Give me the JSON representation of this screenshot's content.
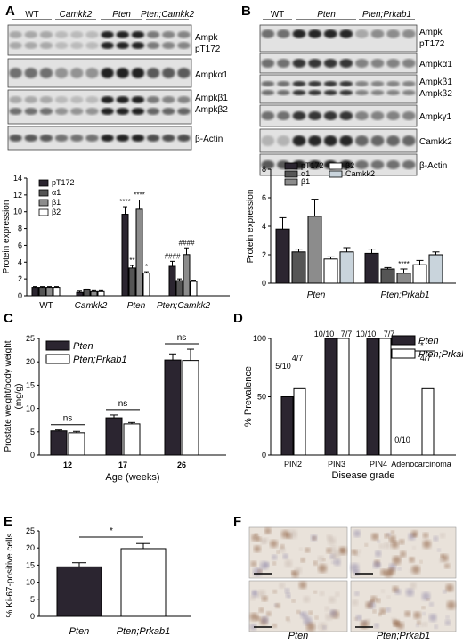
{
  "panel_letters": [
    "A",
    "B",
    "C",
    "D",
    "E",
    "F"
  ],
  "blots": {
    "A": {
      "groups": [
        "WT",
        "Camkk2",
        "Pten",
        "Pten;Camkk2"
      ],
      "rows": [
        "Ampk pT172",
        "Ampkα1",
        "Ampkβ1 Ampkβ2",
        "β-Actin"
      ]
    },
    "B": {
      "groups": [
        "WT",
        "Pten",
        "Pten;Prkab1"
      ],
      "rows": [
        "Ampk pT172",
        "Ampkα1",
        "Ampkβ1 Ampkβ2",
        "Ampkγ1",
        "Camkk2",
        "β-Actin"
      ]
    }
  },
  "micrograph_labels": [
    "Pten",
    "Pten;Prkab1"
  ],
  "colors": {
    "black": "#1a1a1a",
    "dark_gray": "#555555",
    "mid_gray": "#8c8c8c",
    "white": "#ffffff",
    "light_blue": "#c9d4dc",
    "dark_fill": "#2b2530"
  },
  "chart_data": [
    {
      "panel": "A",
      "type": "bar",
      "categories": [
        "WT",
        "Camkk2",
        "Pten",
        "Pten;Camkk2"
      ],
      "ylabel": "Protein expression",
      "ylim": [
        0,
        14
      ],
      "yticks": [
        0,
        2,
        4,
        6,
        8,
        10,
        12,
        14
      ],
      "series": [
        {
          "name": "pT172",
          "values": [
            1.0,
            0.4,
            9.7,
            3.5
          ],
          "errors": [
            0.1,
            0.15,
            0.9,
            0.6
          ]
        },
        {
          "name": "α1",
          "values": [
            1.0,
            0.7,
            3.3,
            1.8
          ],
          "errors": [
            0.1,
            0.1,
            0.3,
            0.2
          ]
        },
        {
          "name": "β1",
          "values": [
            1.0,
            0.5,
            10.3,
            4.9
          ],
          "errors": [
            0.1,
            0.1,
            1.1,
            0.8
          ]
        },
        {
          "name": "β2",
          "values": [
            1.0,
            0.5,
            2.7,
            1.7
          ],
          "errors": [
            0.1,
            0.1,
            0.15,
            0.15
          ]
        }
      ],
      "annotations": [
        {
          "category": "Pten",
          "series": 0,
          "text": "****"
        },
        {
          "category": "Pten",
          "series": 1,
          "text": "**"
        },
        {
          "category": "Pten",
          "series": 2,
          "text": "****"
        },
        {
          "category": "Pten",
          "series": 3,
          "text": "*"
        },
        {
          "category": "Pten;Camkk2",
          "series": 0,
          "text": "####"
        },
        {
          "category": "Pten;Camkk2",
          "series": 2,
          "text": "####"
        }
      ],
      "legend_position": "top-left"
    },
    {
      "panel": "B",
      "type": "bar",
      "categories": [
        "Pten",
        "Pten;Prkab1"
      ],
      "ylabel": "Protein expression",
      "ylim": [
        0,
        8
      ],
      "yticks": [
        0,
        2,
        4,
        6,
        8
      ],
      "series": [
        {
          "name": "pT172",
          "values": [
            3.8,
            2.1
          ],
          "errors": [
            0.8,
            0.3
          ]
        },
        {
          "name": "α1",
          "values": [
            2.2,
            1.0
          ],
          "errors": [
            0.2,
            0.1
          ]
        },
        {
          "name": "β1",
          "values": [
            4.7,
            0.7
          ],
          "errors": [
            1.2,
            0.3
          ]
        },
        {
          "name": "β2",
          "values": [
            1.7,
            1.3
          ],
          "errors": [
            0.15,
            0.3
          ]
        },
        {
          "name": "Camkk2",
          "values": [
            2.2,
            2.0
          ],
          "errors": [
            0.3,
            0.2
          ]
        }
      ],
      "annotations": [
        {
          "category": "Pten;Prkab1",
          "series": 2,
          "text": "****"
        }
      ],
      "legend_position": "top-left"
    },
    {
      "panel": "C",
      "type": "bar",
      "categories": [
        "12",
        "17",
        "26"
      ],
      "xlabel": "Age (weeks)",
      "ylabel": "Prostate weight/body weight (mg/g)",
      "ylim": [
        0,
        25
      ],
      "yticks": [
        0,
        5,
        10,
        15,
        20,
        25
      ],
      "series": [
        {
          "name": "Pten",
          "values": [
            5.2,
            8.0,
            20.4
          ],
          "errors": [
            0.2,
            0.6,
            1.3
          ]
        },
        {
          "name": "Pten;Prkab1",
          "values": [
            4.8,
            6.7,
            20.3
          ],
          "errors": [
            0.3,
            0.3,
            2.4
          ]
        }
      ],
      "annotations": [
        {
          "category": "12",
          "text": "ns"
        },
        {
          "category": "17",
          "text": "ns"
        },
        {
          "category": "26",
          "text": "ns"
        }
      ],
      "legend_position": "top-left"
    },
    {
      "panel": "D",
      "type": "bar",
      "categories": [
        "PIN2",
        "PIN3",
        "PIN4",
        "Adenocarcinoma"
      ],
      "xlabel": "Disease grade",
      "ylabel": "% Prevalence",
      "ylim": [
        0,
        100
      ],
      "yticks": [
        0,
        50,
        100
      ],
      "series": [
        {
          "name": "Pten",
          "values": [
            50,
            100,
            100,
            0
          ],
          "labels": [
            "5/10",
            "10/10",
            "10/10",
            "0/10"
          ]
        },
        {
          "name": "Pten;Prkab1",
          "values": [
            57,
            100,
            100,
            57
          ],
          "labels": [
            "4/7",
            "7/7",
            "7/7",
            "4/7"
          ]
        }
      ],
      "annotations": [
        {
          "category": "Adenocarcinoma",
          "text": "*"
        }
      ],
      "legend_position": "top-right"
    },
    {
      "panel": "E",
      "type": "bar",
      "categories": [
        "Pten",
        "Pten;Prkab1"
      ],
      "ylabel": "% Ki-67-positive cells",
      "ylim": [
        0,
        25
      ],
      "yticks": [
        0,
        5,
        10,
        15,
        20,
        25
      ],
      "values": [
        14.5,
        19.8
      ],
      "errors": [
        1.2,
        1.5
      ],
      "annotations": [
        {
          "text": "*"
        }
      ]
    }
  ]
}
